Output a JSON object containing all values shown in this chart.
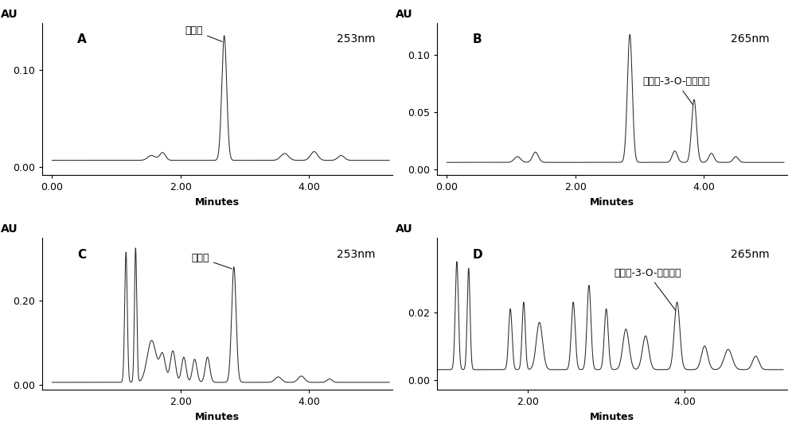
{
  "panels": [
    {
      "label": "A",
      "wavelength": "253nm",
      "compound": "樺花酸",
      "ylim": [
        -0.008,
        0.148
      ],
      "yticks": [
        0.0,
        0.1
      ],
      "xlim": [
        -0.15,
        5.3
      ],
      "xticks": [
        0.0,
        2.0,
        4.0
      ],
      "xlabel": "Minutes",
      "ylabel": "AU"
    },
    {
      "label": "B",
      "wavelength": "265nm",
      "compound": "山奈酬-3-O-芊香糖苷",
      "ylim": [
        -0.005,
        0.128
      ],
      "yticks": [
        0.0,
        0.05,
        0.1
      ],
      "xlim": [
        -0.15,
        5.3
      ],
      "xticks": [
        0.0,
        2.0,
        4.0
      ],
      "xlabel": "Minutes",
      "ylabel": "AU"
    },
    {
      "label": "C",
      "wavelength": "253nm",
      "compound": "樺花酸",
      "ylim": [
        -0.012,
        0.35
      ],
      "yticks": [
        0.0,
        0.2
      ],
      "xlim": [
        -0.15,
        5.3
      ],
      "xticks": [
        2.0,
        4.0
      ],
      "xlabel": "Minutes",
      "ylabel": "AU"
    },
    {
      "label": "D",
      "wavelength": "265nm",
      "compound": "山奈酬-3-O-芊香糖苷",
      "ylim": [
        -0.003,
        0.042
      ],
      "yticks": [
        0.0,
        0.02
      ],
      "xlim": [
        0.85,
        5.3
      ],
      "xticks": [
        2.0,
        4.0
      ],
      "xlabel": "Minutes",
      "ylabel": "AU"
    }
  ]
}
